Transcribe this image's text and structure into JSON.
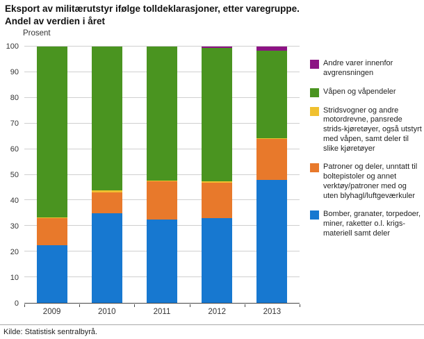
{
  "title": {
    "line1": "Eksport av militærutstyr ifølge tolldeklarasjoner, etter varegruppe.",
    "line2": "Andel av verdien i året"
  },
  "y_axis_label": "Prosent",
  "source": "Kilde: Statistisk sentralbyrå.",
  "chart_data": {
    "type": "bar",
    "stacked": true,
    "title": "Eksport av militærutstyr ifølge tolldeklarasjoner, etter varegruppe. Andel av verdien i året",
    "ylabel": "Prosent",
    "xlabel": "",
    "ylim": [
      0,
      100
    ],
    "y_ticks": [
      0,
      10,
      20,
      30,
      40,
      50,
      60,
      70,
      80,
      90,
      100
    ],
    "grid": true,
    "legend_position": "right",
    "categories": [
      "2009",
      "2010",
      "2011",
      "2012",
      "2013"
    ],
    "series": [
      {
        "name": "Bomber, granater, torpedoer, miner, raketter o.l. krigs-materiell samt deler",
        "color": "#1778d0",
        "values": [
          22.5,
          35,
          32.5,
          33,
          48
        ]
      },
      {
        "name": "Patroner og deler, unntatt til boltepistoler og annet verktøy/patroner med og uten blyhagl/luftgeværkuler",
        "color": "#e8792b",
        "values": [
          10.5,
          8,
          15,
          14,
          16
        ]
      },
      {
        "name": "Stridsvogner og andre motordrevne, pansrede strids-kjøretøyer, også utstyrt med våpen, samt deler til slike kjøretøyer",
        "color": "#f0c02f",
        "values": [
          0.3,
          1,
          0.3,
          0.5,
          0.2
        ]
      },
      {
        "name": "Våpen og våpendeler",
        "color": "#4a9420",
        "values": [
          66.7,
          56,
          52.2,
          52,
          34.3
        ]
      },
      {
        "name": "Andre varer innenfor avgrensningen",
        "color": "#8c1383",
        "values": [
          0,
          0,
          0,
          0.5,
          1.5
        ]
      }
    ]
  }
}
